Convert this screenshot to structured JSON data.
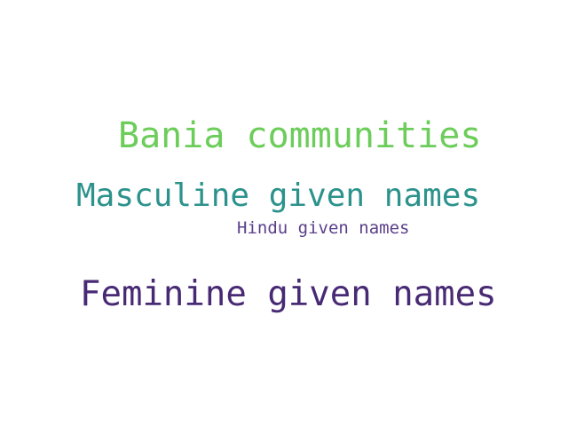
{
  "words": [
    {
      "text": "Bania communities",
      "color": "#6ccd5a"
    },
    {
      "text": "Masculine given names",
      "color": "#2c928c"
    },
    {
      "text": "Hindu given names",
      "color": "#5a3f8a"
    },
    {
      "text": "Feminine given names",
      "color": "#482a74"
    }
  ],
  "background": "#ffffff"
}
